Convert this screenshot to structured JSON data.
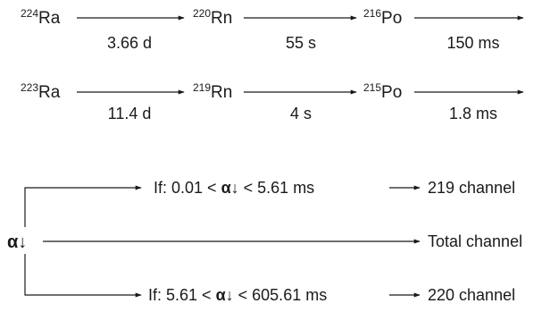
{
  "chains": [
    {
      "nuclides": [
        {
          "mass": "224",
          "symbol": "Ra"
        },
        {
          "mass": "220",
          "symbol": "Rn"
        },
        {
          "mass": "216",
          "symbol": "Po"
        }
      ],
      "half_lives": [
        "3.66 d",
        "55 s",
        "150 ms"
      ]
    },
    {
      "nuclides": [
        {
          "mass": "223",
          "symbol": "Ra"
        },
        {
          "mass": "219",
          "symbol": "Rn"
        },
        {
          "mass": "215",
          "symbol": "Po"
        }
      ],
      "half_lives": [
        "11.4 d",
        "4 s",
        "1.8 ms"
      ]
    }
  ],
  "selection": {
    "source_symbol": "α↓",
    "branches": [
      {
        "condition_prefix": "If: 0.01 < ",
        "condition_symbol": "α↓",
        "condition_suffix": " < 5.61 ms",
        "result": "219 channel"
      },
      {
        "condition_prefix": "",
        "condition_symbol": "",
        "condition_suffix": "",
        "result": "Total channel"
      },
      {
        "condition_prefix": "If: 5.61 < ",
        "condition_symbol": "α↓",
        "condition_suffix": " < 605.61 ms",
        "result": "220 channel"
      }
    ]
  }
}
